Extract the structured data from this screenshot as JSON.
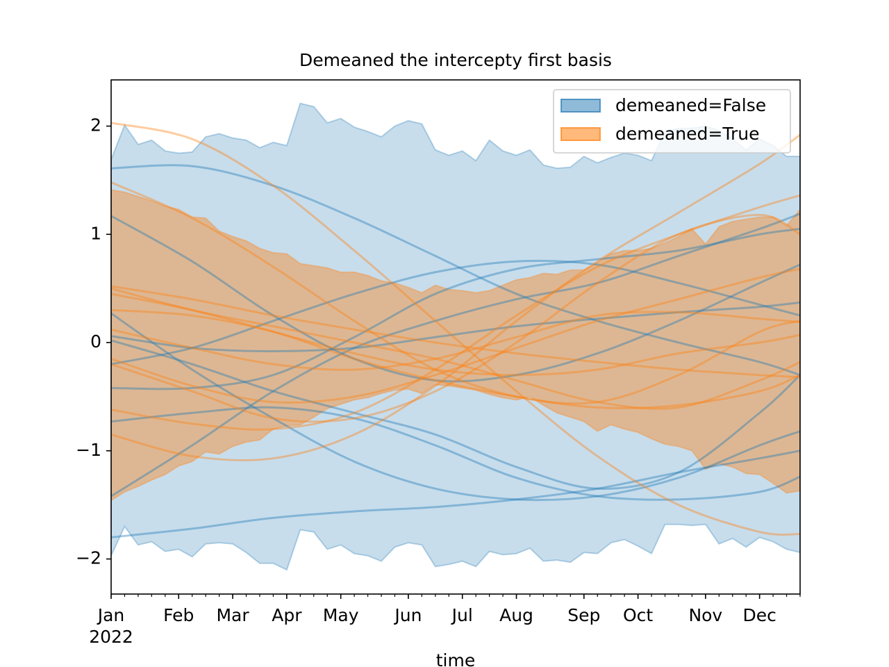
{
  "chart_data": {
    "type": "band-lines",
    "title": "Demeaned the intercepty first basis",
    "x_label": "time",
    "x_year_label": "2022",
    "x": [
      0,
      1,
      2,
      3,
      4,
      5,
      6,
      7,
      8,
      9,
      10,
      11,
      12,
      13,
      14,
      15,
      16,
      17,
      18,
      19,
      20,
      21,
      22,
      23,
      24,
      25,
      26,
      27,
      28,
      29,
      30,
      31,
      32,
      33,
      34,
      35,
      36,
      37,
      38,
      39,
      40,
      41,
      42,
      43,
      44,
      45,
      46,
      47,
      48,
      49,
      50,
      51
    ],
    "line_x": [
      0,
      6,
      12,
      18,
      24,
      30,
      36,
      42,
      48,
      51
    ],
    "xlim": [
      0,
      51
    ],
    "xticks": [
      {
        "value": 0,
        "label": "Jan"
      },
      {
        "value": 5,
        "label": "Feb"
      },
      {
        "value": 9,
        "label": "Mar"
      },
      {
        "value": 13,
        "label": "Apr"
      },
      {
        "value": 17,
        "label": "May"
      },
      {
        "value": 22,
        "label": "Jun"
      },
      {
        "value": 26,
        "label": "Jul"
      },
      {
        "value": 30,
        "label": "Aug"
      },
      {
        "value": 35,
        "label": "Sep"
      },
      {
        "value": 39,
        "label": "Oct"
      },
      {
        "value": 44,
        "label": "Nov"
      },
      {
        "value": 48,
        "label": "Dec"
      }
    ],
    "minor_xticks": [
      0,
      1,
      2,
      3,
      4,
      5,
      6,
      7,
      8,
      9,
      10,
      11,
      12,
      13,
      14,
      15,
      16,
      17,
      18,
      19,
      20,
      21,
      22,
      23,
      24,
      25,
      26,
      27,
      28,
      29,
      30,
      31,
      32,
      33,
      34,
      35,
      36,
      37,
      38,
      39,
      40,
      41,
      42,
      43,
      44,
      45,
      46,
      47,
      48,
      49,
      50,
      51
    ],
    "ylim": [
      -2.324,
      2.427
    ],
    "yticks": [
      {
        "value": -2,
        "label": "−2"
      },
      {
        "value": -1,
        "label": "−1"
      },
      0,
      1,
      2
    ],
    "legend": "upper right",
    "series": [
      {
        "name": "demeaned=False",
        "color": "#1f77b4",
        "upper": [
          1.69,
          2.01,
          1.83,
          1.87,
          1.77,
          1.75,
          1.76,
          1.9,
          1.93,
          1.89,
          1.87,
          1.8,
          1.85,
          1.82,
          2.21,
          2.18,
          2.03,
          2.07,
          1.99,
          1.95,
          1.9,
          2.0,
          2.05,
          2.02,
          1.78,
          1.73,
          1.77,
          1.68,
          1.87,
          1.77,
          1.73,
          1.78,
          1.64,
          1.61,
          1.62,
          1.72,
          1.66,
          1.71,
          1.75,
          1.73,
          1.68,
          1.95,
          1.98,
          1.98,
          2.0,
          1.96,
          1.88,
          1.78,
          1.88,
          1.82,
          1.72,
          1.72
        ],
        "lower": [
          -1.97,
          -1.7,
          -1.87,
          -1.84,
          -1.93,
          -1.91,
          -1.98,
          -1.86,
          -1.85,
          -1.86,
          -1.94,
          -2.04,
          -2.04,
          -2.1,
          -1.73,
          -1.75,
          -1.91,
          -1.87,
          -1.95,
          -1.97,
          -2.02,
          -1.89,
          -1.85,
          -1.87,
          -2.07,
          -2.05,
          -2.02,
          -2.07,
          -1.93,
          -1.96,
          -1.95,
          -1.9,
          -2.02,
          -2.01,
          -2.03,
          -1.94,
          -1.95,
          -1.85,
          -1.82,
          -1.88,
          -1.95,
          -1.68,
          -1.68,
          -1.69,
          -1.68,
          -1.86,
          -1.81,
          -1.89,
          -1.8,
          -1.84,
          -1.91,
          -1.94
        ],
        "lines": [
          [
            1.61,
            1.63,
            1.45,
            1.15,
            0.8,
            0.45,
            0.2,
            0.0,
            -0.18,
            -0.3
          ],
          [
            1.17,
            0.75,
            0.25,
            -0.15,
            -0.35,
            -0.3,
            -0.1,
            0.2,
            0.55,
            0.72
          ],
          [
            0.27,
            -0.25,
            -0.7,
            -1.1,
            -1.35,
            -1.45,
            -1.42,
            -1.25,
            -0.95,
            -0.82
          ],
          [
            0.06,
            -0.05,
            -0.08,
            -0.05,
            0.05,
            0.15,
            0.22,
            0.28,
            0.33,
            0.37
          ],
          [
            -0.2,
            -0.05,
            0.2,
            0.45,
            0.65,
            0.75,
            0.72,
            0.55,
            0.35,
            0.25
          ],
          [
            -0.42,
            -0.42,
            -0.3,
            0.05,
            0.45,
            0.68,
            0.77,
            0.85,
            1.0,
            1.05
          ],
          [
            -0.73,
            -0.65,
            -0.6,
            -0.7,
            -0.95,
            -1.25,
            -1.42,
            -1.45,
            -1.38,
            -1.24
          ],
          [
            -1.42,
            -0.95,
            -0.45,
            -0.05,
            0.2,
            0.4,
            0.55,
            0.8,
            1.05,
            1.19
          ],
          [
            -1.8,
            -1.72,
            -1.62,
            -1.56,
            -1.52,
            -1.45,
            -1.35,
            -1.2,
            -1.07,
            -1.0
          ],
          [
            0.02,
            -0.2,
            -0.45,
            -0.65,
            -0.85,
            -1.15,
            -1.35,
            -1.2,
            -0.65,
            -0.3
          ]
        ]
      },
      {
        "name": "demeaned=True",
        "color": "#ff7f0e",
        "upper": [
          1.41,
          1.39,
          1.35,
          1.31,
          1.26,
          1.23,
          1.16,
          1.15,
          1.03,
          0.98,
          0.94,
          0.87,
          0.83,
          0.82,
          0.73,
          0.71,
          0.69,
          0.65,
          0.65,
          0.62,
          0.57,
          0.55,
          0.51,
          0.46,
          0.53,
          0.49,
          0.48,
          0.46,
          0.48,
          0.53,
          0.58,
          0.6,
          0.64,
          0.63,
          0.67,
          0.67,
          0.74,
          0.82,
          0.85,
          0.85,
          0.87,
          0.92,
          0.98,
          1.05,
          0.91,
          1.07,
          1.12,
          1.14,
          1.16,
          1.16,
          1.08,
          1.23
        ],
        "lower": [
          -1.46,
          -1.38,
          -1.33,
          -1.27,
          -1.22,
          -1.14,
          -1.1,
          -1.01,
          -1.03,
          -0.96,
          -0.92,
          -0.9,
          -0.8,
          -0.77,
          -0.76,
          -0.69,
          -0.61,
          -0.57,
          -0.53,
          -0.51,
          -0.47,
          -0.44,
          -0.43,
          -0.47,
          -0.39,
          -0.4,
          -0.42,
          -0.44,
          -0.48,
          -0.51,
          -0.53,
          -0.5,
          -0.58,
          -0.65,
          -0.69,
          -0.73,
          -0.82,
          -0.76,
          -0.8,
          -0.83,
          -0.89,
          -0.94,
          -0.96,
          -1.0,
          -1.17,
          -1.12,
          -1.15,
          -1.21,
          -1.22,
          -1.3,
          -1.39,
          -1.37
        ],
        "lines": [
          [
            2.03,
            1.88,
            1.45,
            0.85,
            0.2,
            -0.45,
            -1.05,
            -1.5,
            -1.75,
            -1.77
          ],
          [
            1.48,
            1.15,
            0.7,
            0.2,
            -0.25,
            -0.5,
            -0.55,
            -0.3,
            0.1,
            0.2
          ],
          [
            0.52,
            0.4,
            0.25,
            0.12,
            0.0,
            -0.1,
            -0.18,
            -0.25,
            -0.3,
            -0.32
          ],
          [
            0.45,
            0.3,
            0.1,
            -0.1,
            -0.25,
            -0.3,
            -0.25,
            -0.1,
            0.0,
            0.07
          ],
          [
            0.12,
            -0.05,
            -0.2,
            -0.25,
            -0.15,
            0.05,
            0.25,
            0.28,
            0.22,
            0.19
          ],
          [
            -0.2,
            -0.45,
            -0.7,
            -0.7,
            -0.45,
            0.0,
            0.55,
            1.0,
            1.18,
            1.0
          ],
          [
            -0.62,
            -0.75,
            -0.8,
            -0.65,
            -0.25,
            0.25,
            0.7,
            1.0,
            1.25,
            1.36
          ],
          [
            -0.85,
            -1.05,
            -1.07,
            -0.85,
            -0.4,
            0.2,
            0.75,
            1.2,
            1.65,
            1.92
          ],
          [
            -0.15,
            -0.4,
            -0.55,
            -0.5,
            -0.3,
            -0.05,
            0.2,
            0.4,
            0.6,
            0.68
          ],
          [
            0.5,
            0.3,
            0.15,
            0.0,
            -0.15,
            -0.35,
            -0.55,
            -0.6,
            -0.35,
            -0.18
          ],
          [
            0.3,
            0.25,
            0.1,
            -0.15,
            -0.35,
            -0.5,
            -0.6,
            -0.58,
            -0.45,
            -0.3
          ]
        ]
      }
    ]
  }
}
